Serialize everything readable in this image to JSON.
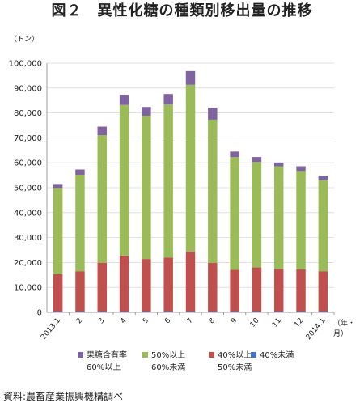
{
  "title": "図２　異性化糖の種類別移出量の推移",
  "source": "資料:農畜産業振興機構調べ",
  "chart_data": {
    "type": "bar",
    "stacked": true,
    "y_unit": "（トン）",
    "x_unit": "（年・月）",
    "categories": [
      "2013.1",
      "2",
      "3",
      "4",
      "5",
      "6",
      "7",
      "8",
      "9",
      "10",
      "11",
      "12",
      "2014.1"
    ],
    "ylim": [
      0,
      100000
    ],
    "yticks": [
      "0",
      "10,000",
      "20,000",
      "30,000",
      "40,000",
      "50,000",
      "60,000",
      "70,000",
      "80,000",
      "90,000",
      "100,000"
    ],
    "grid": true,
    "legend_position": "bottom",
    "series": [
      {
        "name_line1": "40%未満",
        "name_line2": "",
        "color": "#4472c4",
        "values": [
          300,
          300,
          300,
          300,
          300,
          300,
          300,
          300,
          300,
          300,
          300,
          300,
          300
        ]
      },
      {
        "name_line1": "40%以上",
        "name_line2": "50%未満",
        "color": "#c0504d",
        "values": [
          15000,
          16200,
          19600,
          22500,
          21100,
          21700,
          24000,
          19500,
          16800,
          17700,
          17100,
          16900,
          16200
        ]
      },
      {
        "name_line1": "50%以上",
        "name_line2": "60%未満",
        "color": "#9bbb59",
        "values": [
          34600,
          38700,
          51200,
          60400,
          57500,
          61500,
          67000,
          57500,
          45200,
          42300,
          41200,
          39500,
          36500
        ]
      },
      {
        "name_line1": "果糖含有率",
        "name_line2": "60%以上",
        "color": "#8064a2",
        "values": [
          1600,
          2100,
          3400,
          4000,
          3500,
          4100,
          5500,
          4800,
          2200,
          2000,
          1500,
          1900,
          1800
        ]
      }
    ]
  }
}
